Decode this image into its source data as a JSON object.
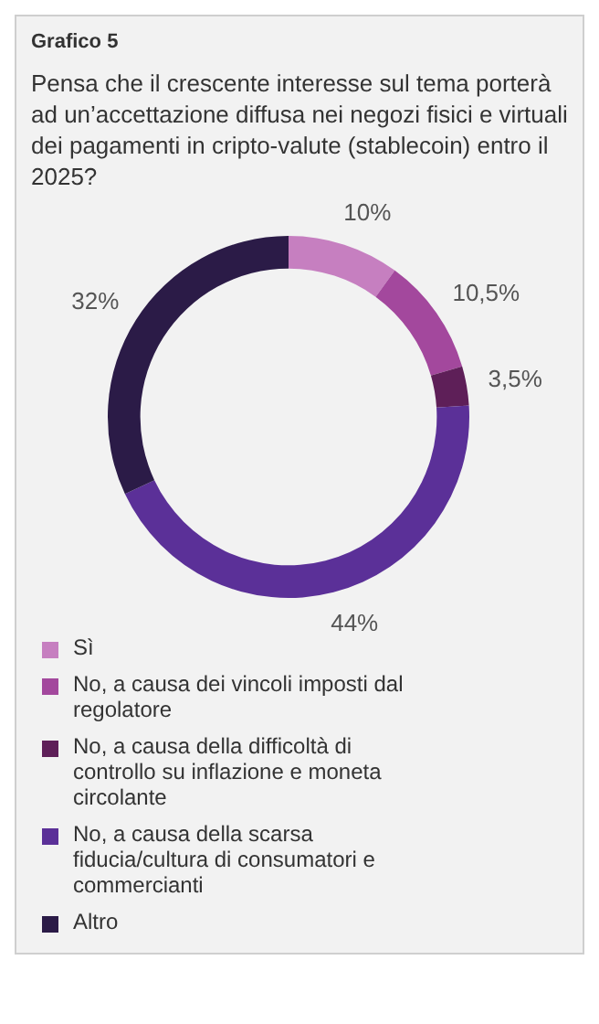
{
  "chart_data": {
    "type": "donut",
    "title": "Pensa che il crescente interesse sul tema porterà ad un’accettazione diffusa nei negozi fisici e virtuali dei pagamenti in cripto-valute (stablecoin) entro il 2025?",
    "subtitle": "Grafico 5",
    "categories": [
      "Sì",
      "No, a causa dei vincoli imposti dal regolatore",
      "No, a causa della difficoltà di controllo su inflazione e moneta circolante",
      "No, a causa della scarsa fiducia/cultura di consumatori e commercianti",
      "Altro"
    ],
    "values": [
      10,
      10.5,
      3.5,
      44,
      32
    ],
    "value_labels": [
      "10%",
      "10,5%",
      "3,5%",
      "44%",
      "32%"
    ],
    "colors": [
      "#c67fc0",
      "#a3489d",
      "#5e1f58",
      "#5b3098",
      "#2b1b47"
    ],
    "legend": "bottom"
  }
}
